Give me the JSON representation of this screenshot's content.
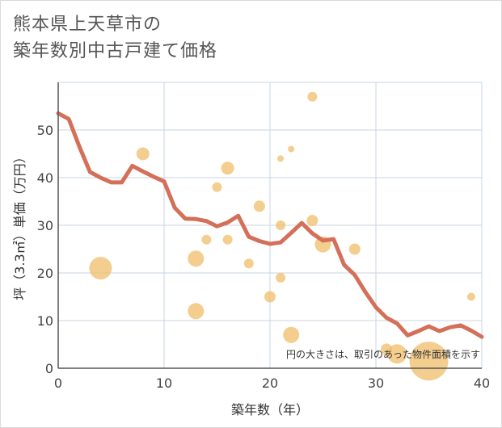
{
  "header": {
    "title_line1": "熊本県上天草市の",
    "title_line2": "築年数別中古戸建て価格"
  },
  "chart_data": {
    "type": "scatter",
    "title": "熊本県上天草市の築年数別中古戸建て価格",
    "xlabel": "築年数（年）",
    "ylabel": "坪（3.3㎡）単価（万円）",
    "xlim": [
      0,
      40
    ],
    "ylim": [
      0,
      60
    ],
    "xticks": [
      0,
      10,
      20,
      30,
      40
    ],
    "yticks": [
      0,
      10,
      20,
      30,
      40,
      50
    ],
    "grid": true,
    "note": "円の大きさは、取引のあった物件面積を示す",
    "colors": {
      "line": "#d4705a",
      "bubble": "#f0c06e",
      "grid": "#c8d4e2",
      "axis": "#555555"
    },
    "trend_line": {
      "x": [
        0,
        1,
        2,
        3,
        4,
        5,
        6,
        7,
        8,
        9,
        10,
        11,
        12,
        13,
        14,
        15,
        16,
        17,
        18,
        19,
        20,
        21,
        22,
        23,
        24,
        25,
        26,
        27,
        28,
        29,
        30,
        31,
        32,
        33,
        34,
        35,
        36,
        37,
        38,
        39,
        40
      ],
      "y": [
        53.5,
        52.3,
        46.5,
        41.2,
        40.0,
        39.0,
        39.0,
        42.5,
        41.3,
        40.2,
        39.2,
        33.7,
        31.4,
        31.3,
        30.9,
        29.8,
        30.6,
        32.0,
        27.6,
        26.7,
        26.1,
        26.4,
        28.4,
        30.5,
        28.3,
        26.8,
        27.1,
        21.7,
        19.6,
        16.0,
        12.8,
        10.6,
        9.4,
        6.9,
        7.8,
        8.8,
        7.8,
        8.6,
        9.0,
        7.9,
        6.6
      ]
    },
    "bubbles": [
      {
        "x": 4,
        "y": 21,
        "r": 14
      },
      {
        "x": 8,
        "y": 45,
        "r": 8
      },
      {
        "x": 13,
        "y": 23,
        "r": 10
      },
      {
        "x": 13,
        "y": 12,
        "r": 10
      },
      {
        "x": 14,
        "y": 27,
        "r": 6
      },
      {
        "x": 15,
        "y": 38,
        "r": 6
      },
      {
        "x": 16,
        "y": 42,
        "r": 8
      },
      {
        "x": 16,
        "y": 27,
        "r": 6
      },
      {
        "x": 18,
        "y": 22,
        "r": 6
      },
      {
        "x": 19,
        "y": 34,
        "r": 7
      },
      {
        "x": 20,
        "y": 15,
        "r": 7
      },
      {
        "x": 21,
        "y": 44,
        "r": 4
      },
      {
        "x": 21,
        "y": 30,
        "r": 6
      },
      {
        "x": 21,
        "y": 19,
        "r": 6
      },
      {
        "x": 22,
        "y": 46,
        "r": 4
      },
      {
        "x": 22,
        "y": 7,
        "r": 10
      },
      {
        "x": 24,
        "y": 57,
        "r": 6
      },
      {
        "x": 24,
        "y": 31,
        "r": 7
      },
      {
        "x": 25,
        "y": 26,
        "r": 10
      },
      {
        "x": 28,
        "y": 25,
        "r": 7
      },
      {
        "x": 31,
        "y": 4,
        "r": 7
      },
      {
        "x": 32,
        "y": 3,
        "r": 12
      },
      {
        "x": 35,
        "y": 1.5,
        "r": 24
      },
      {
        "x": 39,
        "y": 15,
        "r": 5
      }
    ]
  }
}
